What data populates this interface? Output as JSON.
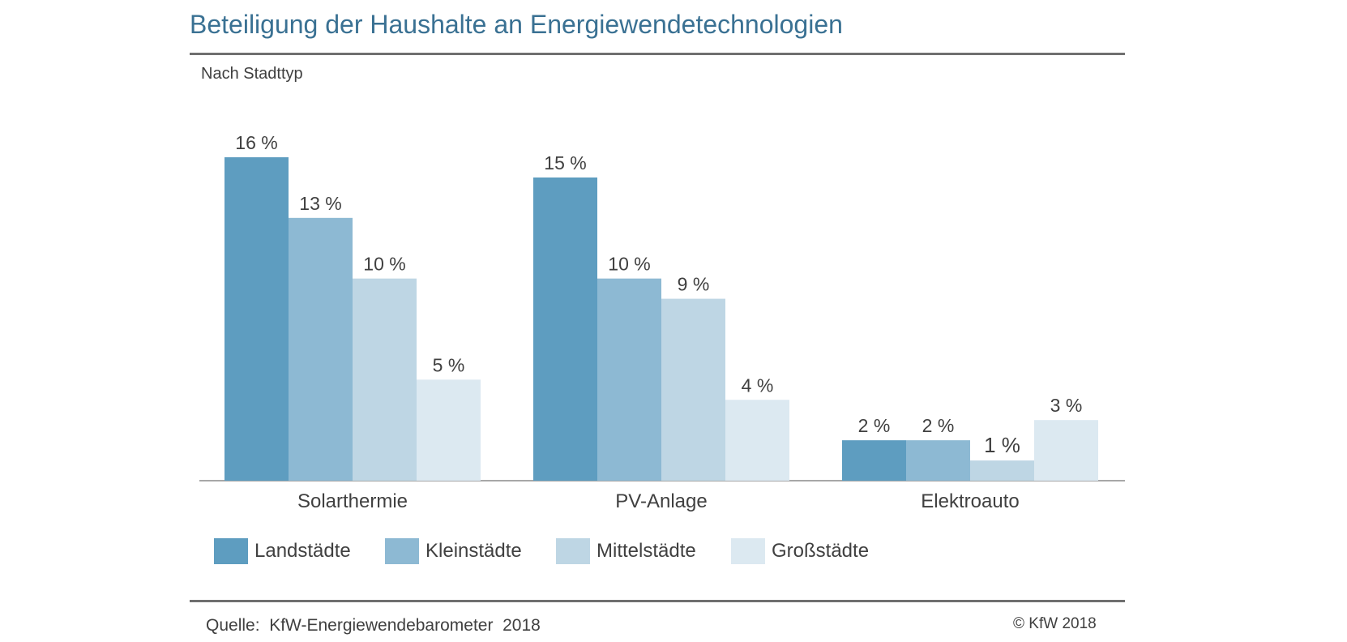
{
  "chart_data": {
    "type": "bar",
    "title": "Beteiligung der Haushalte an Energiewendetechnologien",
    "subtitle": "Nach Stadttyp",
    "categories": [
      "Solarthermie",
      "PV-Anlage",
      "Elektroauto"
    ],
    "series": [
      {
        "name": "Landstädte",
        "color": "#5e9dc0",
        "values": [
          16,
          15,
          2
        ],
        "labels": [
          "16 %",
          "15 %",
          "2 %"
        ]
      },
      {
        "name": "Kleinstädte",
        "color": "#8db9d3",
        "values": [
          13,
          10,
          2
        ],
        "labels": [
          "13 %",
          "10 %",
          "2 %"
        ]
      },
      {
        "name": "Mittelstädte",
        "color": "#bed6e4",
        "values": [
          10,
          9,
          1
        ],
        "labels": [
          "10 %",
          "9 %",
          "1 %"
        ]
      },
      {
        "name": "Großstädte",
        "color": "#dce9f1",
        "values": [
          5,
          4,
          3
        ],
        "labels": [
          "5 %",
          "4 %",
          "3 %"
        ]
      }
    ],
    "ylim": [
      0,
      16
    ],
    "grid": false,
    "legend_position": "bottom"
  },
  "footer": {
    "source": "Quelle:  KfW-Energiewendebarometer  2018",
    "copyright": "© KfW 2018"
  }
}
